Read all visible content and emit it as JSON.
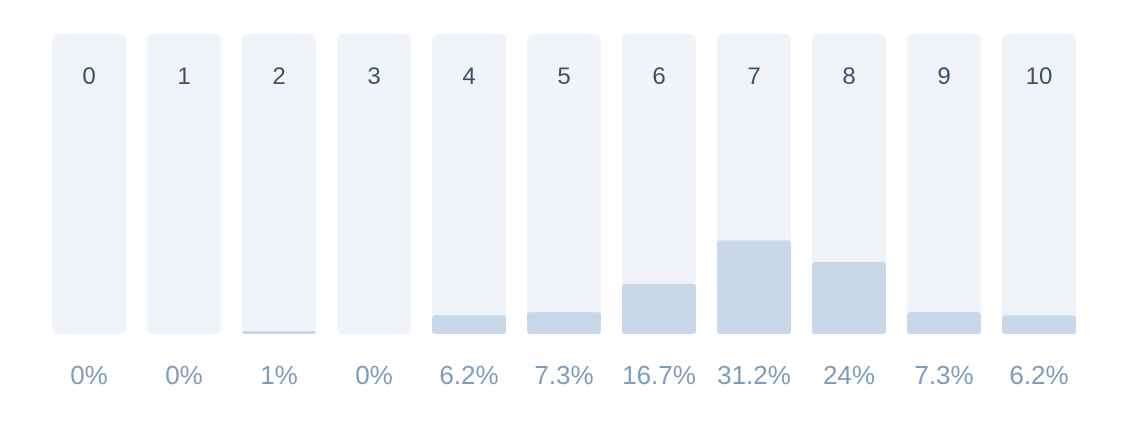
{
  "chart_data": {
    "type": "bar",
    "categories": [
      "0",
      "1",
      "2",
      "3",
      "4",
      "5",
      "6",
      "7",
      "8",
      "9",
      "10"
    ],
    "values": [
      0,
      0,
      1,
      0,
      6.2,
      7.3,
      16.7,
      31.2,
      24,
      7.3,
      6.2
    ],
    "value_labels": [
      "0%",
      "0%",
      "1%",
      "0%",
      "6.2%",
      "7.3%",
      "16.7%",
      "31.2%",
      "24%",
      "7.3%",
      "6.2%"
    ],
    "ylim": [
      0,
      100
    ],
    "grid": false,
    "legend": "none",
    "colors": {
      "track": "#f0f4f9",
      "fill": "#c9d8e9",
      "category_text": "#3d5166",
      "value_text": "#7e9dbd"
    }
  }
}
